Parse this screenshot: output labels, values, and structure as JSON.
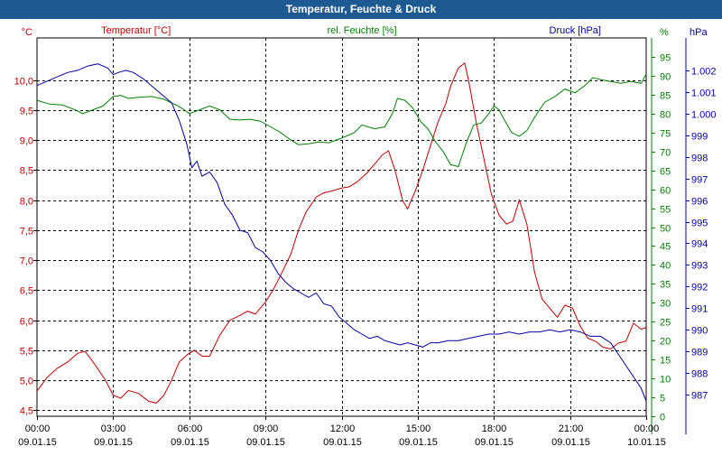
{
  "window": {
    "title": "Temperatur, Feuchte & Druck"
  },
  "chart_data": {
    "type": "line",
    "title": "Temperatur, Feuchte & Druck",
    "grid": true,
    "x_ticks": [
      {
        "hour": 0,
        "time": "00:00",
        "date": "09.01.15"
      },
      {
        "hour": 3,
        "time": "03:00",
        "date": "09.01.15"
      },
      {
        "hour": 6,
        "time": "06:00",
        "date": "09.01.15"
      },
      {
        "hour": 9,
        "time": "09:00",
        "date": "09.01.15"
      },
      {
        "hour": 12,
        "time": "12:00",
        "date": "09.01.15"
      },
      {
        "hour": 15,
        "time": "15:00",
        "date": "09.01.15"
      },
      {
        "hour": 18,
        "time": "18:00",
        "date": "09.01.15"
      },
      {
        "hour": 21,
        "time": "21:00",
        "date": "09.01.15"
      },
      {
        "hour": 24,
        "time": "00:00",
        "date": "10.01.15"
      }
    ],
    "x_range": [
      0,
      24
    ],
    "axes": {
      "temperature": {
        "unit": "°C",
        "color": "#c00000",
        "range": [
          4.4,
          10.7
        ],
        "ticks": [
          4.5,
          5.0,
          5.5,
          6.0,
          6.5,
          7.0,
          7.5,
          8.0,
          8.5,
          9.0,
          9.5,
          10.0
        ],
        "tick_labels": [
          "4,5",
          "5,0",
          "5,5",
          "6,0",
          "6,5",
          "7,0",
          "7,5",
          "8,0",
          "8,5",
          "9,0",
          "9,5",
          "10,0"
        ]
      },
      "humidity": {
        "unit": "%",
        "color": "#008000",
        "range": [
          0,
          100
        ],
        "ticks": [
          0,
          5,
          10,
          15,
          20,
          25,
          30,
          35,
          40,
          45,
          50,
          55,
          60,
          65,
          70,
          75,
          80,
          85,
          90,
          95
        ],
        "tick_labels": [
          "0",
          "5",
          "10",
          "15",
          "20",
          "25",
          "30",
          "35",
          "40",
          "45",
          "50",
          "55",
          "60",
          "65",
          "70",
          "75",
          "80",
          "85",
          "90",
          "95"
        ]
      },
      "pressure": {
        "unit": "hPa",
        "color": "#0000a0",
        "range": [
          986,
          1003.5
        ],
        "ticks": [
          987,
          988,
          989,
          990,
          991,
          992,
          993,
          994,
          995,
          996,
          997,
          998,
          999,
          1000,
          1001,
          1002
        ],
        "tick_labels": [
          "987",
          "988",
          "989",
          "990",
          "991",
          "992",
          "993",
          "994",
          "995",
          "996",
          "997",
          "998",
          "999",
          "1.000",
          "1.001",
          "1.002"
        ]
      }
    },
    "series": [
      {
        "name": "Temperatur [°C]",
        "axis": "temperature",
        "color": "#c00000",
        "points": [
          [
            0,
            4.82
          ],
          [
            0.4,
            5.05
          ],
          [
            0.8,
            5.2
          ],
          [
            1.2,
            5.3
          ],
          [
            1.6,
            5.45
          ],
          [
            1.9,
            5.48
          ],
          [
            2.3,
            5.25
          ],
          [
            2.7,
            5.0
          ],
          [
            3.0,
            4.75
          ],
          [
            3.3,
            4.7
          ],
          [
            3.6,
            4.83
          ],
          [
            4.0,
            4.78
          ],
          [
            4.4,
            4.65
          ],
          [
            4.7,
            4.62
          ],
          [
            5.0,
            4.75
          ],
          [
            5.3,
            5.0
          ],
          [
            5.6,
            5.3
          ],
          [
            5.9,
            5.42
          ],
          [
            6.2,
            5.5
          ],
          [
            6.5,
            5.4
          ],
          [
            6.8,
            5.4
          ],
          [
            7.2,
            5.75
          ],
          [
            7.6,
            6.0
          ],
          [
            8.0,
            6.08
          ],
          [
            8.3,
            6.15
          ],
          [
            8.6,
            6.1
          ],
          [
            9.0,
            6.3
          ],
          [
            9.3,
            6.5
          ],
          [
            9.6,
            6.75
          ],
          [
            10.0,
            7.1
          ],
          [
            10.3,
            7.5
          ],
          [
            10.6,
            7.8
          ],
          [
            11.0,
            8.05
          ],
          [
            11.3,
            8.12
          ],
          [
            11.6,
            8.15
          ],
          [
            12.0,
            8.2
          ],
          [
            12.3,
            8.22
          ],
          [
            12.6,
            8.3
          ],
          [
            13.0,
            8.45
          ],
          [
            13.3,
            8.6
          ],
          [
            13.6,
            8.75
          ],
          [
            13.85,
            8.82
          ],
          [
            14.1,
            8.5
          ],
          [
            14.4,
            8.0
          ],
          [
            14.6,
            7.85
          ],
          [
            14.9,
            8.15
          ],
          [
            15.2,
            8.5
          ],
          [
            15.5,
            8.9
          ],
          [
            15.8,
            9.3
          ],
          [
            16.1,
            9.6
          ],
          [
            16.3,
            9.9
          ],
          [
            16.6,
            10.2
          ],
          [
            16.85,
            10.28
          ],
          [
            17.0,
            10.0
          ],
          [
            17.3,
            9.3
          ],
          [
            17.6,
            8.7
          ],
          [
            17.9,
            8.1
          ],
          [
            18.2,
            7.75
          ],
          [
            18.5,
            7.6
          ],
          [
            18.75,
            7.65
          ],
          [
            19.0,
            8.0
          ],
          [
            19.3,
            7.6
          ],
          [
            19.6,
            6.8
          ],
          [
            19.9,
            6.35
          ],
          [
            20.2,
            6.2
          ],
          [
            20.5,
            6.05
          ],
          [
            20.8,
            6.25
          ],
          [
            21.1,
            6.2
          ],
          [
            21.4,
            5.9
          ],
          [
            21.7,
            5.7
          ],
          [
            22.0,
            5.65
          ],
          [
            22.3,
            5.55
          ],
          [
            22.6,
            5.52
          ],
          [
            22.9,
            5.62
          ],
          [
            23.2,
            5.65
          ],
          [
            23.5,
            5.95
          ],
          [
            23.8,
            5.85
          ],
          [
            24.0,
            5.88
          ]
        ]
      },
      {
        "name": "rel. Feuchte [%]",
        "axis": "humidity",
        "color": "#008000",
        "points": [
          [
            0,
            83.5
          ],
          [
            0.5,
            82.5
          ],
          [
            1.0,
            82.3
          ],
          [
            1.5,
            81.0
          ],
          [
            1.8,
            80.0
          ],
          [
            2.2,
            81.0
          ],
          [
            2.6,
            82.0
          ],
          [
            3.0,
            84.5
          ],
          [
            3.3,
            84.8
          ],
          [
            3.6,
            84.0
          ],
          [
            4.0,
            84.3
          ],
          [
            4.5,
            84.5
          ],
          [
            5.0,
            83.8
          ],
          [
            5.5,
            82.2
          ],
          [
            5.8,
            81.0
          ],
          [
            6.0,
            80.0
          ],
          [
            6.4,
            81.0
          ],
          [
            6.8,
            82.0
          ],
          [
            7.2,
            81.0
          ],
          [
            7.6,
            78.5
          ],
          [
            8.0,
            78.3
          ],
          [
            8.4,
            78.5
          ],
          [
            8.8,
            78.0
          ],
          [
            9.2,
            76.5
          ],
          [
            9.6,
            75.0
          ],
          [
            10.0,
            73.0
          ],
          [
            10.3,
            71.8
          ],
          [
            10.7,
            72.0
          ],
          [
            11.1,
            72.5
          ],
          [
            11.5,
            72.3
          ],
          [
            12.0,
            73.5
          ],
          [
            12.5,
            75.0
          ],
          [
            12.8,
            77.0
          ],
          [
            13.3,
            76.0
          ],
          [
            13.7,
            76.5
          ],
          [
            14.0,
            80.0
          ],
          [
            14.2,
            84.0
          ],
          [
            14.5,
            83.5
          ],
          [
            14.8,
            81.5
          ],
          [
            15.1,
            78.0
          ],
          [
            15.4,
            76.0
          ],
          [
            15.7,
            72.5
          ],
          [
            16.0,
            70.0
          ],
          [
            16.3,
            66.5
          ],
          [
            16.6,
            66.0
          ],
          [
            16.9,
            72.0
          ],
          [
            17.2,
            77.0
          ],
          [
            17.5,
            77.5
          ],
          [
            17.8,
            80.0
          ],
          [
            18.0,
            82.0
          ],
          [
            18.2,
            81.0
          ],
          [
            18.4,
            78.5
          ],
          [
            18.7,
            75.0
          ],
          [
            19.0,
            74.0
          ],
          [
            19.3,
            75.5
          ],
          [
            19.6,
            79.0
          ],
          [
            20.0,
            83.0
          ],
          [
            20.4,
            84.5
          ],
          [
            20.8,
            86.5
          ],
          [
            21.2,
            85.5
          ],
          [
            21.6,
            87.5
          ],
          [
            21.9,
            89.5
          ],
          [
            22.2,
            89.0
          ],
          [
            22.6,
            88.5
          ],
          [
            23.0,
            88.0
          ],
          [
            23.4,
            88.5
          ],
          [
            23.8,
            88.0
          ],
          [
            24.0,
            90.5
          ]
        ]
      },
      {
        "name": "Druck [hPa]",
        "axis": "pressure",
        "color": "#0000a0",
        "points": [
          [
            0,
            1001.3
          ],
          [
            0.4,
            1001.5
          ],
          [
            0.8,
            1001.7
          ],
          [
            1.2,
            1001.9
          ],
          [
            1.6,
            1002.0
          ],
          [
            2.0,
            1002.2
          ],
          [
            2.4,
            1002.3
          ],
          [
            2.8,
            1002.1
          ],
          [
            3.0,
            1001.8
          ],
          [
            3.2,
            1001.9
          ],
          [
            3.5,
            1002.0
          ],
          [
            3.8,
            1001.9
          ],
          [
            4.2,
            1001.6
          ],
          [
            4.6,
            1001.2
          ],
          [
            5.0,
            1000.8
          ],
          [
            5.3,
            1000.5
          ],
          [
            5.6,
            999.7
          ],
          [
            5.9,
            998.6
          ],
          [
            6.1,
            997.5
          ],
          [
            6.3,
            997.8
          ],
          [
            6.5,
            997.1
          ],
          [
            6.8,
            997.3
          ],
          [
            7.1,
            996.8
          ],
          [
            7.4,
            995.8
          ],
          [
            7.7,
            995.3
          ],
          [
            8.0,
            994.6
          ],
          [
            8.3,
            994.5
          ],
          [
            8.6,
            993.8
          ],
          [
            8.9,
            993.6
          ],
          [
            9.2,
            993.2
          ],
          [
            9.5,
            992.6
          ],
          [
            9.8,
            992.2
          ],
          [
            10.1,
            991.9
          ],
          [
            10.4,
            991.7
          ],
          [
            10.7,
            991.5
          ],
          [
            11.0,
            991.7
          ],
          [
            11.3,
            991.2
          ],
          [
            11.6,
            991.1
          ],
          [
            11.9,
            990.6
          ],
          [
            12.2,
            990.3
          ],
          [
            12.5,
            990.0
          ],
          [
            12.8,
            989.8
          ],
          [
            13.1,
            989.6
          ],
          [
            13.4,
            989.7
          ],
          [
            13.7,
            989.5
          ],
          [
            14.0,
            989.4
          ],
          [
            14.3,
            989.3
          ],
          [
            14.6,
            989.4
          ],
          [
            14.9,
            989.3
          ],
          [
            15.2,
            989.2
          ],
          [
            15.5,
            989.4
          ],
          [
            15.8,
            989.4
          ],
          [
            16.2,
            989.5
          ],
          [
            16.6,
            989.5
          ],
          [
            17.0,
            989.6
          ],
          [
            17.4,
            989.7
          ],
          [
            17.8,
            989.8
          ],
          [
            18.2,
            989.8
          ],
          [
            18.6,
            989.9
          ],
          [
            19.0,
            989.8
          ],
          [
            19.4,
            989.9
          ],
          [
            19.8,
            989.9
          ],
          [
            20.2,
            990.0
          ],
          [
            20.6,
            989.9
          ],
          [
            21.0,
            990.0
          ],
          [
            21.4,
            989.9
          ],
          [
            21.8,
            989.7
          ],
          [
            22.2,
            989.7
          ],
          [
            22.6,
            989.4
          ],
          [
            23.0,
            988.7
          ],
          [
            23.4,
            988.0
          ],
          [
            23.8,
            987.3
          ],
          [
            24.0,
            986.7
          ]
        ]
      }
    ]
  }
}
